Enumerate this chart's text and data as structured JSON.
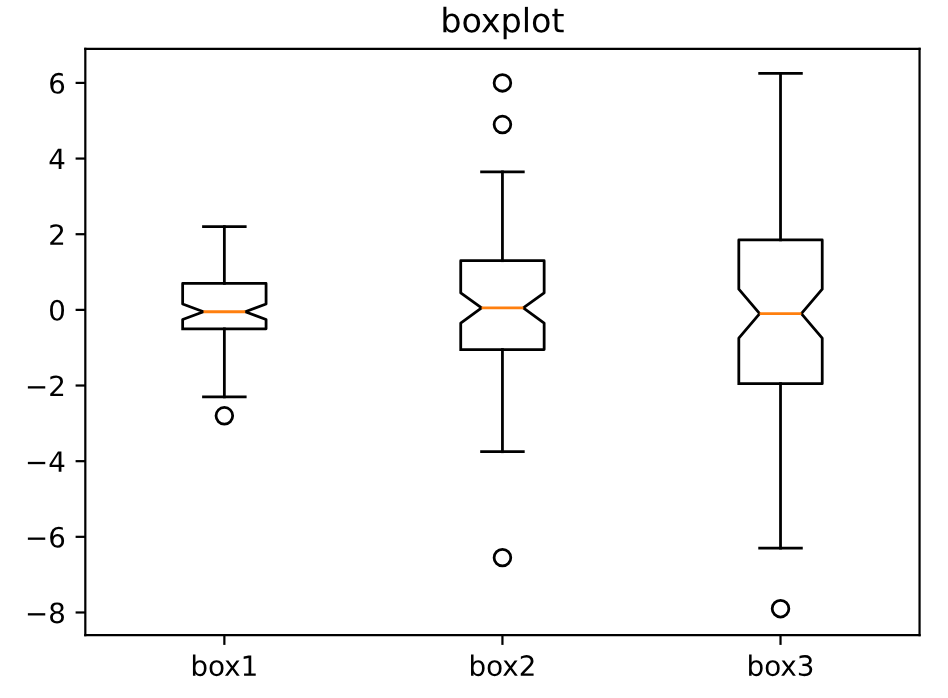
{
  "chart_data": {
    "type": "box",
    "title": "boxplot",
    "categories": [
      "box1",
      "box2",
      "box3"
    ],
    "boxes": [
      {
        "low": -2.3,
        "q1": -0.5,
        "median": -0.05,
        "q3": 0.7,
        "high": 2.2,
        "outliers": [
          -2.8
        ]
      },
      {
        "low": -3.75,
        "q1": -1.05,
        "median": 0.05,
        "q3": 1.3,
        "high": 3.65,
        "outliers": [
          6.0,
          4.9,
          -6.55
        ]
      },
      {
        "low": -6.3,
        "q1": -1.95,
        "median": -0.1,
        "q3": 1.85,
        "high": 6.25,
        "outliers": [
          -7.9
        ]
      }
    ],
    "ylim": [
      -8.6,
      6.9
    ],
    "yticks": [
      -8,
      -6,
      -4,
      -2,
      0,
      2,
      4,
      6
    ],
    "grid": false
  }
}
